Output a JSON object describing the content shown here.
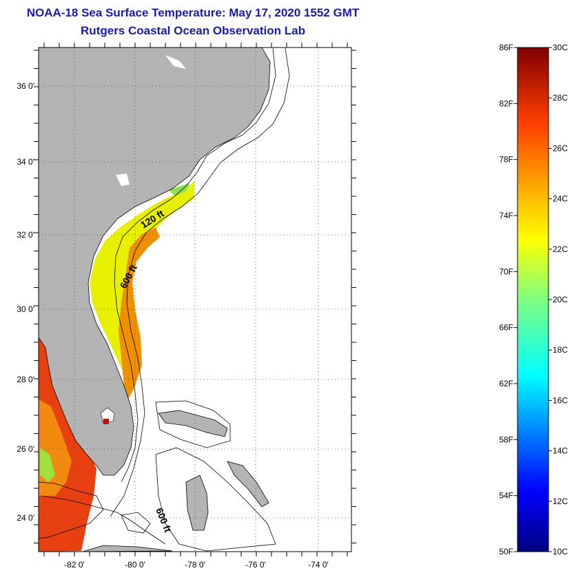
{
  "title": {
    "line1": "NOAA-18 Sea Surface Temperature:  May 17, 2020 1552 GMT",
    "line2": "Rutgers Coastal Ocean Observation Lab"
  },
  "map": {
    "lat_labels": [
      "36 0'",
      "34 0'",
      "32 0'",
      "30 0'",
      "28 0'",
      "26 0'",
      "24 0'"
    ],
    "lon_labels": [
      "-82 0'",
      "-80 0'",
      "-78 0'",
      "-76 0'",
      "-74 0'"
    ],
    "contour_labels": [
      "120 ft",
      "600 ft",
      "600 ft"
    ],
    "colors": {
      "land": "#b4b4b4",
      "ocean": "#ffffff",
      "frame": "#000000"
    }
  },
  "colorbar": {
    "f_labels": [
      "86F",
      "82F",
      "78F",
      "74F",
      "70F",
      "66F",
      "62F",
      "58F",
      "54F",
      "50F"
    ],
    "c_labels": [
      "30C",
      "28C",
      "26C",
      "24C",
      "22C",
      "20C",
      "18C",
      "16C",
      "14C",
      "12C",
      "10C"
    ],
    "range_f": [
      50,
      86
    ],
    "range_c": [
      10,
      30
    ],
    "colormap": "jet"
  }
}
